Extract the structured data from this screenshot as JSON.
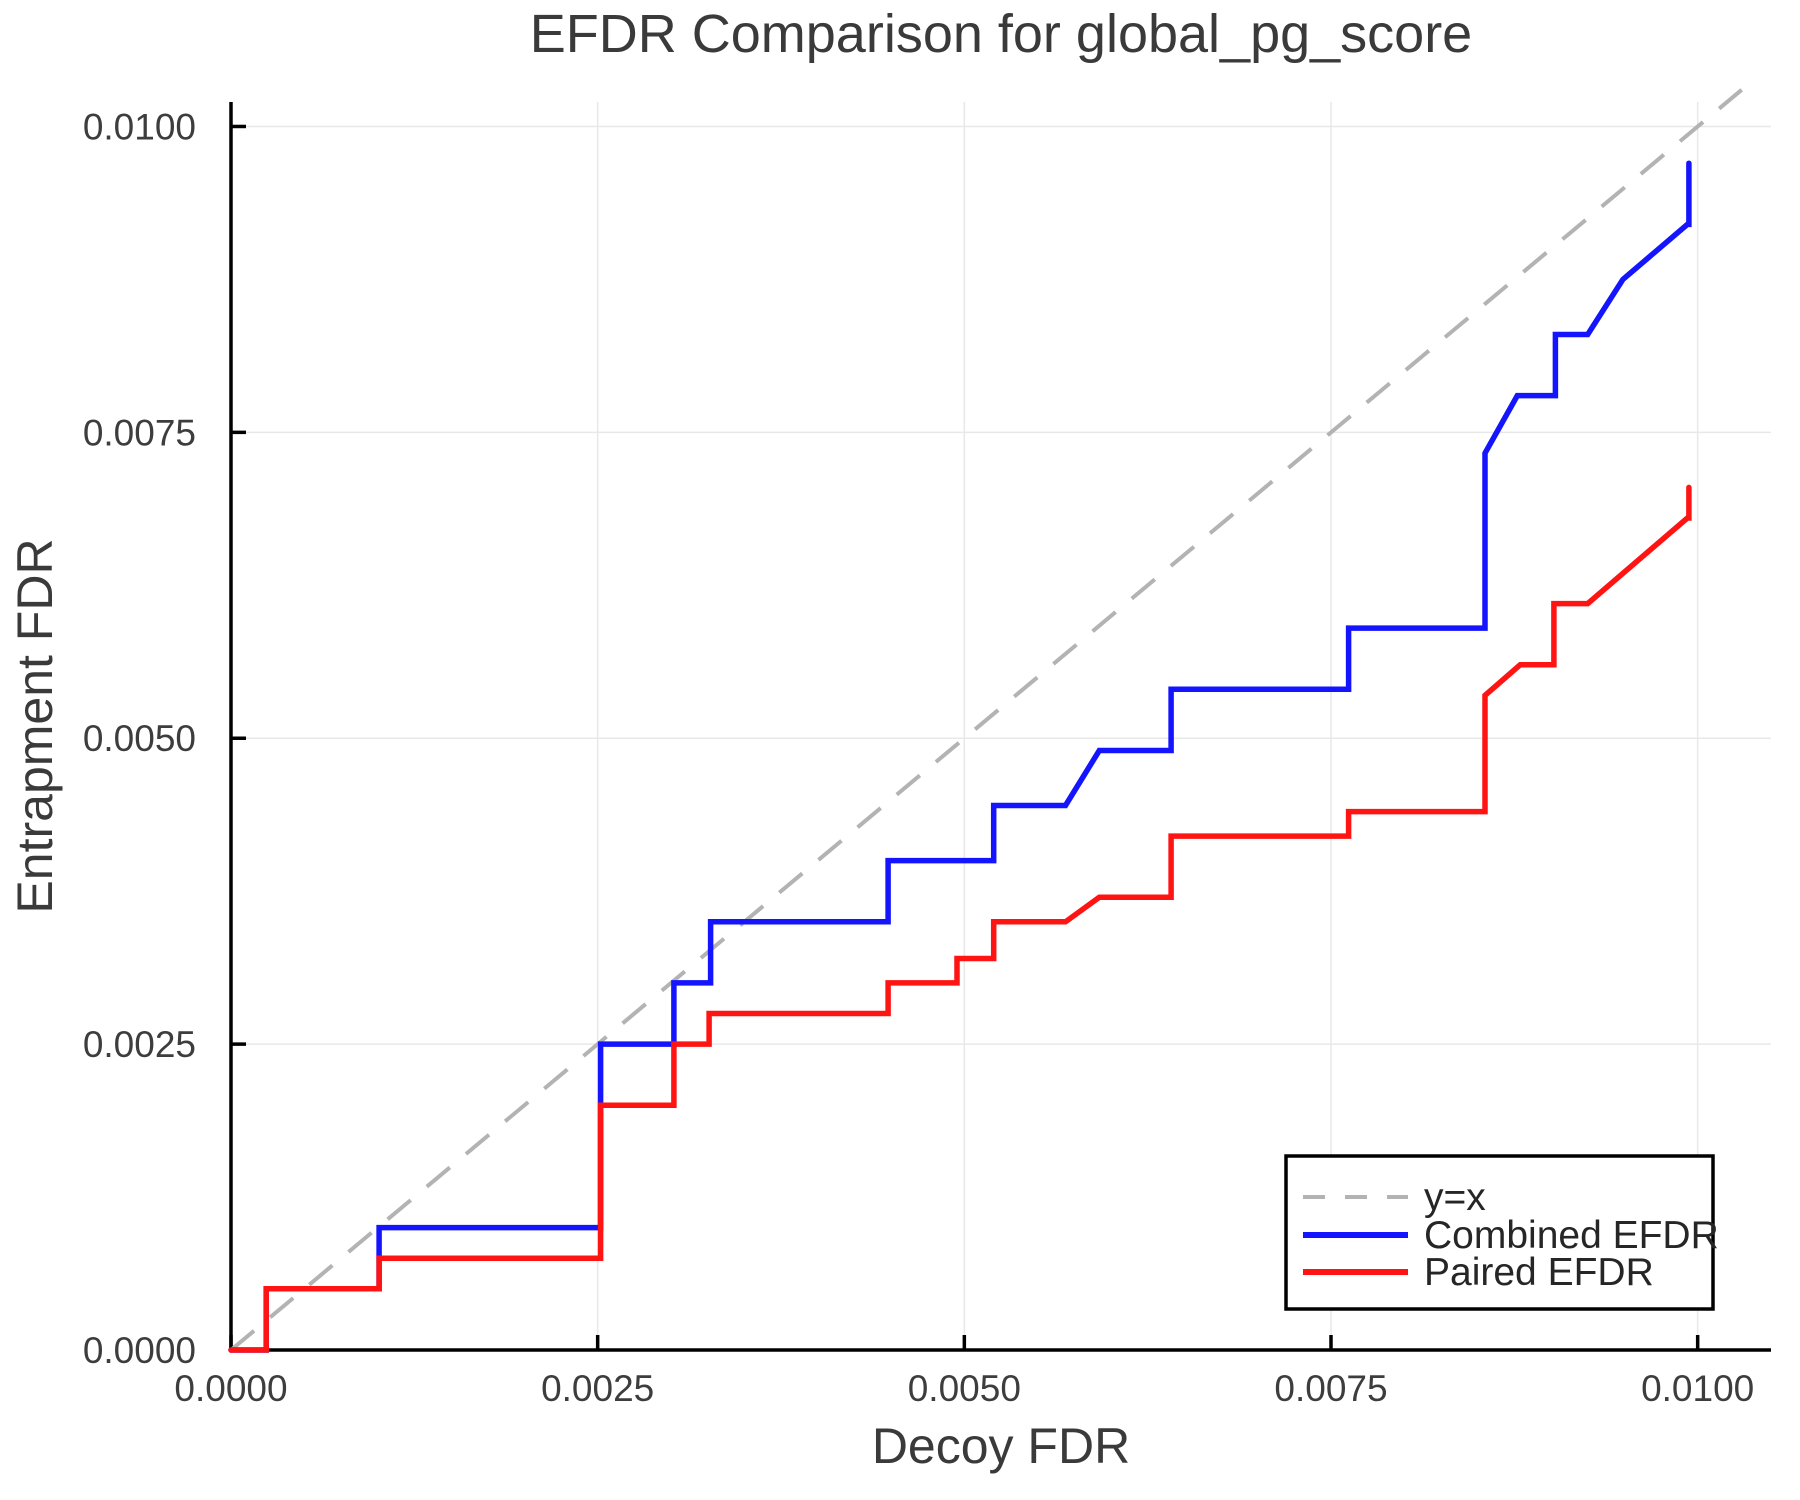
{
  "chart_data": {
    "type": "line",
    "title": "EFDR Comparison for global_pg_score",
    "xlabel": "Decoy FDR",
    "ylabel": "Entrapment FDR",
    "xlim": [
      0,
      0.0105
    ],
    "ylim": [
      0,
      0.0102
    ],
    "grid": true,
    "legend_position": "lower right",
    "x_ticks": {
      "values": [
        0,
        0.0025,
        0.005,
        0.0075,
        0.01
      ],
      "labels": [
        "0.0000",
        "0.0025",
        "0.0050",
        "0.0075",
        "0.0100"
      ]
    },
    "y_ticks": {
      "values": [
        0,
        0.0025,
        0.005,
        0.0075,
        0.01
      ],
      "labels": [
        "0.0000",
        "0.0025",
        "0.0050",
        "0.0075",
        "0.0100"
      ]
    },
    "colors": {
      "grid": "#e8e8e8",
      "spine": "#000000",
      "tick": "#000000",
      "background": "#ffffff",
      "title_text": "#3a3a3a",
      "tick_text": "#3d3d3d"
    },
    "series": [
      {
        "name": "y=x",
        "color": "#b3b3b3",
        "style": "dashed",
        "width": 4,
        "points": [
          [
            0,
            0
          ],
          [
            0.0103,
            0.0103
          ]
        ]
      },
      {
        "name": "Combined EFDR",
        "color": "#1414ff",
        "style": "solid",
        "width": 5.5,
        "points": [
          [
            0.0,
            0.0
          ],
          [
            0.00024,
            0.0
          ],
          [
            0.00024,
            0.0005
          ],
          [
            0.00101,
            0.0005
          ],
          [
            0.00101,
            0.001
          ],
          [
            0.00252,
            0.001
          ],
          [
            0.00252,
            0.0025
          ],
          [
            0.00302,
            0.0025
          ],
          [
            0.00302,
            0.003
          ],
          [
            0.00327,
            0.003
          ],
          [
            0.00327,
            0.0035
          ],
          [
            0.00448,
            0.0035
          ],
          [
            0.00448,
            0.004
          ],
          [
            0.0052,
            0.004
          ],
          [
            0.0052,
            0.00445
          ],
          [
            0.00569,
            0.00445
          ],
          [
            0.00592,
            0.0049
          ],
          [
            0.00641,
            0.0049
          ],
          [
            0.00641,
            0.0054
          ],
          [
            0.00762,
            0.0054
          ],
          [
            0.00762,
            0.0059
          ],
          [
            0.00855,
            0.0059
          ],
          [
            0.00855,
            0.00733
          ],
          [
            0.00877,
            0.0078
          ],
          [
            0.00903,
            0.0078
          ],
          [
            0.00903,
            0.0083
          ],
          [
            0.00925,
            0.0083
          ],
          [
            0.00949,
            0.00875
          ],
          [
            0.00993,
            0.0092
          ],
          [
            0.00994,
            0.0092
          ],
          [
            0.00994,
            0.0097
          ]
        ]
      },
      {
        "name": "Paired EFDR",
        "color": "#ff1414",
        "style": "solid",
        "width": 5.5,
        "points": [
          [
            0.0,
            0.0
          ],
          [
            0.00024,
            0.0
          ],
          [
            0.00024,
            0.0005
          ],
          [
            0.00101,
            0.0005
          ],
          [
            0.00101,
            0.00075
          ],
          [
            0.00252,
            0.00075
          ],
          [
            0.00252,
            0.002
          ],
          [
            0.00302,
            0.002
          ],
          [
            0.00302,
            0.0025
          ],
          [
            0.00326,
            0.0025
          ],
          [
            0.00326,
            0.00275
          ],
          [
            0.00448,
            0.00275
          ],
          [
            0.00448,
            0.003
          ],
          [
            0.00495,
            0.003
          ],
          [
            0.00495,
            0.0032
          ],
          [
            0.0052,
            0.0032
          ],
          [
            0.0052,
            0.0035
          ],
          [
            0.00569,
            0.0035
          ],
          [
            0.00592,
            0.0037
          ],
          [
            0.00641,
            0.0037
          ],
          [
            0.00641,
            0.0042
          ],
          [
            0.00762,
            0.0042
          ],
          [
            0.00762,
            0.0044
          ],
          [
            0.00855,
            0.0044
          ],
          [
            0.00855,
            0.00535
          ],
          [
            0.00879,
            0.0056
          ],
          [
            0.00902,
            0.0056
          ],
          [
            0.00902,
            0.0061
          ],
          [
            0.00925,
            0.0061
          ],
          [
            0.00993,
            0.0068
          ],
          [
            0.00994,
            0.0068
          ],
          [
            0.00994,
            0.00705
          ]
        ]
      }
    ]
  }
}
